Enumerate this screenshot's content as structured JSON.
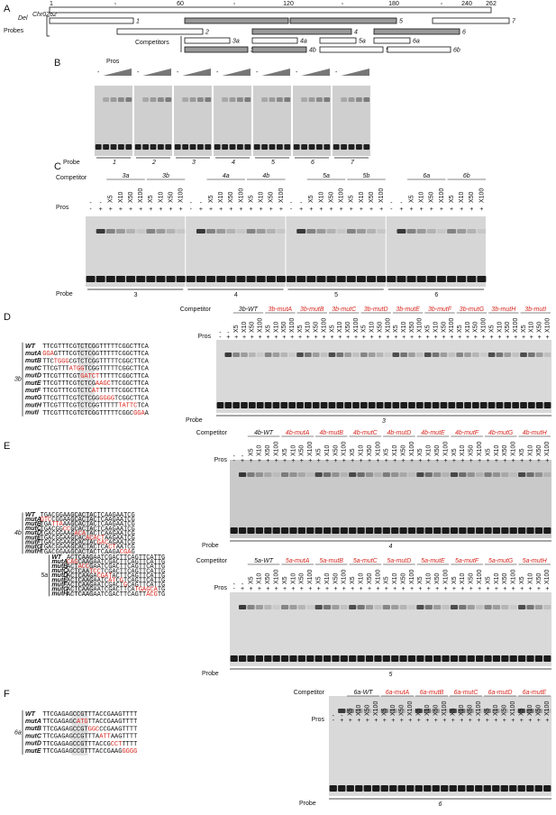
{
  "common": {
    "plus": "+",
    "minus": "-",
    "pros": "Pros",
    "probe": "Probe",
    "competitor": "Competitor",
    "doses": [
      "X5",
      "X10",
      "X50",
      "X100"
    ]
  },
  "panels": {
    "A": {
      "letter": "A",
      "gene": "Del",
      "gene_sup": "Chr0262",
      "ticks": [
        "1",
        "60",
        "120",
        "180",
        "240",
        "262"
      ],
      "probes_label": "Probes",
      "competitors_label": "Competitors",
      "probes": [
        "1",
        "2",
        "3",
        "4",
        "5",
        "6",
        "7"
      ],
      "competitors": [
        "3a",
        "4a",
        "5a",
        "6a",
        "3b",
        "4b",
        "5b",
        "6b"
      ]
    },
    "B": {
      "letter": "B",
      "probes": [
        "1",
        "2",
        "3",
        "4",
        "5",
        "6",
        "7"
      ]
    },
    "C": {
      "letter": "C",
      "groups": [
        {
          "competitors": [
            "3a",
            "3b"
          ],
          "probe": "3"
        },
        {
          "competitors": [
            "4a",
            "4b"
          ],
          "probe": "4"
        },
        {
          "competitors": [
            "5a",
            "5b"
          ],
          "probe": "5"
        },
        {
          "competitors": [
            "6a",
            "6b"
          ],
          "probe": "6"
        }
      ]
    },
    "D": {
      "letter": "D",
      "mutant_color": "#d7261e",
      "gels": [
        {
          "competitors": [
            "3b-WT",
            "3b-mutA",
            "3b-mutB",
            "3b-mutC",
            "3b-mutD",
            "3b-mutE",
            "3b-mutF",
            "3b-mutG",
            "3b-mutH",
            "3b-mutI"
          ],
          "probe": "3"
        }
      ],
      "seq_groups": [
        {
          "label": "3b",
          "rows": [
            {
              "name": "WT",
              "seq": "TTCGTTTCGTCTCGGTTTTTCGGCTTCA"
            },
            {
              "name": "mutA",
              "seq": "GGAGTTTCGTCTCGGTTTTTCGGCTTCA"
            },
            {
              "name": "mutB",
              "seq": "TTCTGGGCGTCTCGGTTTTTCGGCTTCA"
            },
            {
              "name": "mutC",
              "seq": "TTCGTTTATGGTCGGTTTTTCGGCTTCA"
            },
            {
              "name": "mutD",
              "seq": "TTCGTTTCGTGATCTTTTTTCGGCTTCA"
            },
            {
              "name": "mutE",
              "seq": "TTCGTTTCGTCTCGAAGCTTCGGCTTCA"
            },
            {
              "name": "mutF",
              "seq": "TTCGTTTCGTCTCATTTTTTCGGCTTCA"
            },
            {
              "name": "mutG",
              "seq": "TTCGTTTCGTCTCGGGGGGTCGGCTTCA"
            },
            {
              "name": "mutH",
              "seq": "TTCGTTTCGTCTCGGTTTTTTATTCTCA"
            },
            {
              "name": "mutI",
              "seq": "TTCGTTTCGTCTCGGTTTTTCGGCGGAA"
            }
          ]
        }
      ]
    },
    "E": {
      "letter": "E",
      "mutant_color": "#d7261e",
      "gels": [
        {
          "competitors": [
            "4b-WT",
            "4b-mutA",
            "4b-mutB",
            "4b-mutC",
            "4b-mutD",
            "4b-mutE",
            "4b-mutF",
            "4b-mutG",
            "4b-mutH"
          ],
          "probe": "4"
        },
        {
          "competitors": [
            "5a-WT",
            "5a-mutA",
            "5a-mutB",
            "5a-mutC",
            "5a-mutD",
            "5a-mutE",
            "5a-mutF",
            "5a-mutG",
            "5a-mutH"
          ],
          "probe": "5"
        }
      ],
      "seq_groups": [
        {
          "label": "4b",
          "rows": [
            {
              "name": "WT",
              "seq": "TGACGGAAGCACTACTCAAGAATCG"
            },
            {
              "name": "mutA",
              "seq": "GTCCGGAAGCACTACTCAAGAATCG"
            },
            {
              "name": "mutB",
              "seq": "TGATTAAAGCACTACTCAAGAATCG"
            },
            {
              "name": "mutC",
              "seq": "TGACGGCCGCACTACTCAAGAATCG"
            },
            {
              "name": "mutD",
              "seq": "TGACGGAAGACATACTCAAGAATCG"
            },
            {
              "name": "mutE",
              "seq": "TGACGGAAGCACACACTAAGAATCG"
            },
            {
              "name": "mutF",
              "seq": "TGACGGAAGCACTACGACAGAATCG"
            },
            {
              "name": "mutG",
              "seq": "TGACGGAAGCACTACTCACTAATCG"
            },
            {
              "name": "mutH",
              "seq": "TGACGGAAGCACTACTCAAGACGAG"
            }
          ]
        },
        {
          "label": "5a",
          "rows": [
            {
              "name": "WT",
              "seq": "ACTCAAGAATCGACTTCAGTTCATTG"
            },
            {
              "name": "mutA",
              "seq": "CAGCAAGAATCGACTTCAGTTCATTG"
            },
            {
              "name": "mutB",
              "seq": "ACTACCGAATCGACTTCAGTTCATTG"
            },
            {
              "name": "mutC",
              "seq": "ACTCAATCCTCGACTTCAGTTCATTG"
            },
            {
              "name": "mutD",
              "seq": "ACTCAAGACGATACTTCAGTTCATTG"
            },
            {
              "name": "mutE",
              "seq": "ACTCAAGAATCATCGTCAGTTCATTG"
            },
            {
              "name": "mutF",
              "seq": "ACTCAAGAATCGACTGCAGTTCATTG"
            },
            {
              "name": "mutG",
              "seq": "ACTCAAGAATCGACTTCATGAGCATG"
            },
            {
              "name": "mutH",
              "seq": "ACTCAAGAATCGACTTCAGTTACGTG"
            }
          ]
        }
      ]
    },
    "F": {
      "letter": "F",
      "mutant_color": "#d7261e",
      "gels": [
        {
          "competitors": [
            "6a-WT",
            "6a-mutA",
            "6a-mutB",
            "6a-mutC",
            "6a-mutD",
            "6a-mutE"
          ],
          "probe": "6"
        }
      ],
      "seq_groups": [
        {
          "label": "6a",
          "rows": [
            {
              "name": "WT",
              "seq": "TTCGAGAGCCGTTTACCGAAGTTTT"
            },
            {
              "name": "mutA",
              "seq": "TTCGAGAGCATGTTACCGAAGTTTT"
            },
            {
              "name": "mutB",
              "seq": "TTCGAGAGCCGTGGCCCGAAGTTTT"
            },
            {
              "name": "mutC",
              "seq": "TTCGAGAGCCGTTTAATTAAGTTTT"
            },
            {
              "name": "mutD",
              "seq": "TTCGAGAGCCGTTTACCGCCTTTTT"
            },
            {
              "name": "mutE",
              "seq": "TTCGAGAGCCGTTTACCGAAGGGGG"
            }
          ]
        }
      ]
    }
  }
}
